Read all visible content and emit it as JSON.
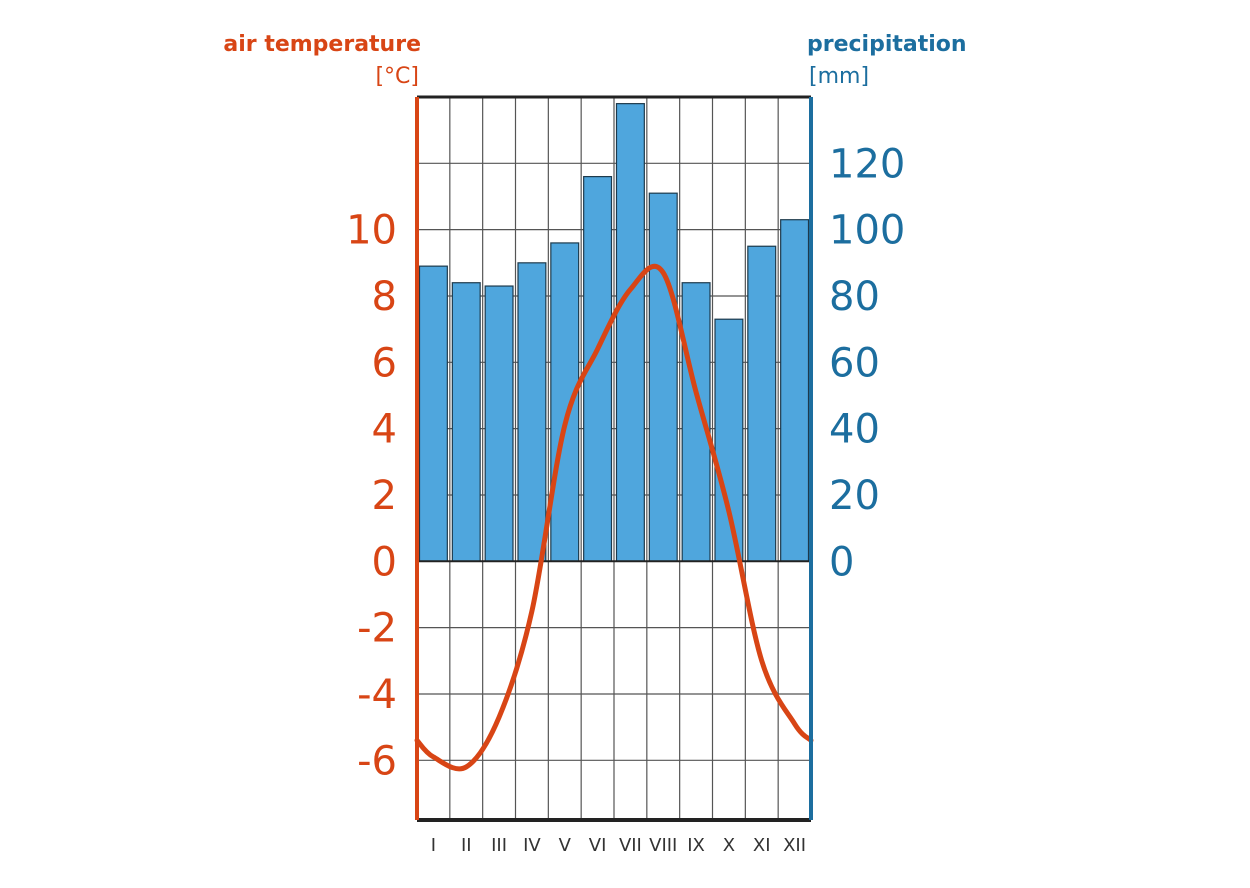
{
  "chart_data": {
    "type": "bar+line",
    "categories": [
      "I",
      "II",
      "III",
      "IV",
      "V",
      "VI",
      "VII",
      "VIII",
      "IX",
      "X",
      "XI",
      "XII"
    ],
    "series": [
      {
        "name": "precipitation",
        "unit": "[mm]",
        "type": "bar",
        "axis": "right",
        "color": "#4fa6dd",
        "values": [
          89,
          84,
          83,
          90,
          96,
          116,
          138,
          111,
          84,
          73,
          95,
          103
        ]
      },
      {
        "name": "air temperature",
        "unit": "[°C]",
        "type": "line",
        "axis": "left",
        "color": "#d84515",
        "values": [
          -5.9,
          -6.2,
          -4.7,
          -1.5,
          4.1,
          6.4,
          8.2,
          8.7,
          5.1,
          1.5,
          -3.0,
          -4.9
        ]
      }
    ],
    "left_axis": {
      "label": "air temperature",
      "unit": "[°C]",
      "ticks": [
        -6,
        -4,
        -2,
        0,
        2,
        4,
        6,
        8,
        10
      ],
      "tick_labels": [
        "-6",
        "-4",
        "-2",
        "0",
        "2",
        "4",
        "6",
        "8",
        "10"
      ],
      "range": [
        -7.8,
        14
      ],
      "color": "#d84515"
    },
    "right_axis": {
      "label": "precipitation",
      "unit": "[mm]",
      "ticks": [
        0,
        20,
        40,
        60,
        80,
        100,
        120
      ],
      "tick_labels": [
        "0",
        "20",
        "40",
        "60",
        "80",
        "100",
        "120"
      ],
      "range": [
        -78,
        140
      ],
      "color": "#1c6e9f"
    },
    "grid": true
  }
}
